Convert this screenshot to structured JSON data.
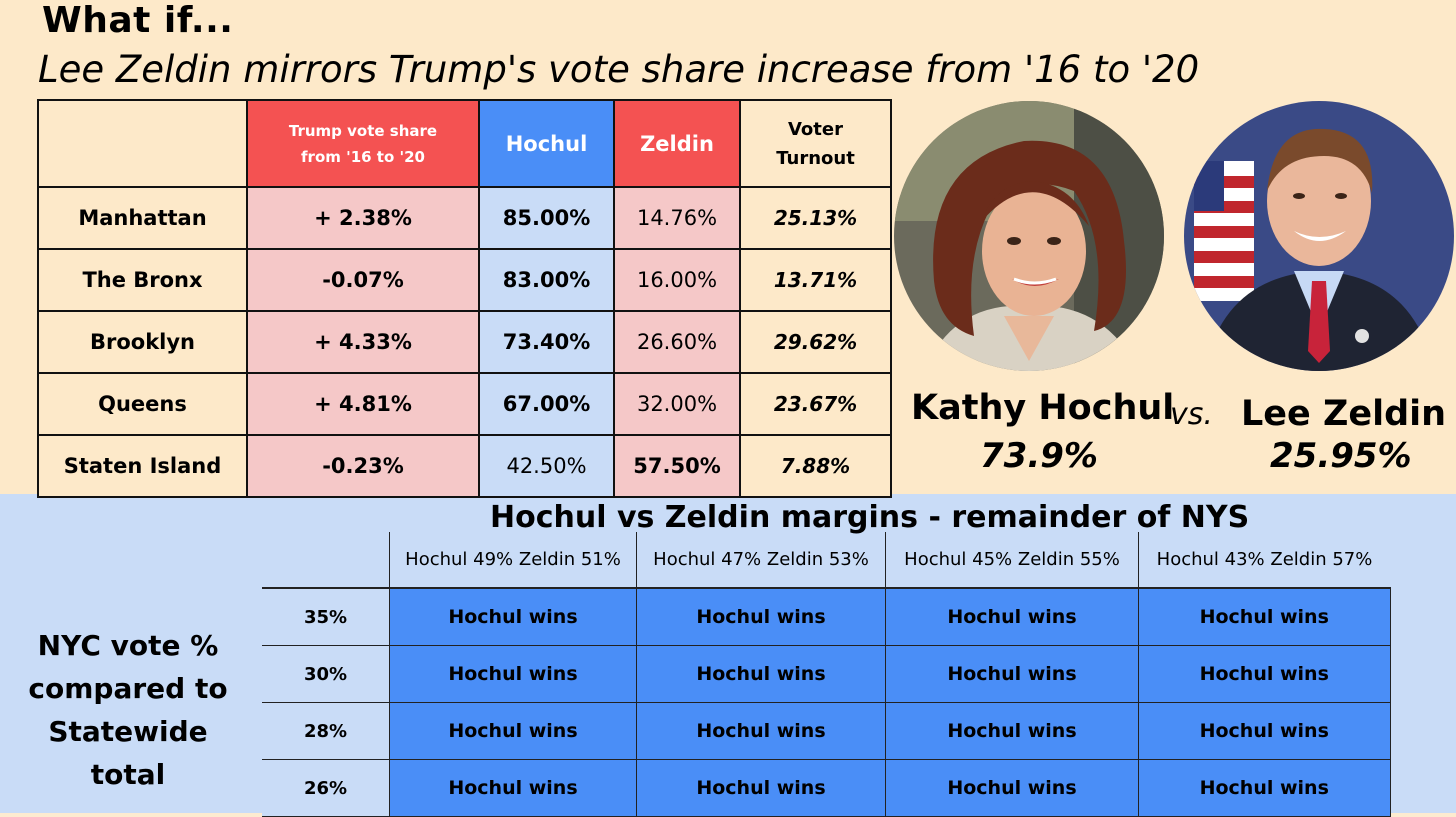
{
  "header": {
    "title": "What if...",
    "subtitle": "Lee Zeldin mirrors Trump's vote share increase from '16 to '20"
  },
  "borough_table": {
    "columns": [
      "Trump vote share from '16 to '20",
      "Hochul",
      "Zeldin",
      "Voter Turnout"
    ],
    "rows": [
      {
        "name": "Manhattan",
        "trump": "+ 2.38%",
        "hochul": "85.00%",
        "zeldin": "14.76%",
        "turnout": "25.13%"
      },
      {
        "name": "The Bronx",
        "trump": "-0.07%",
        "hochul": "83.00%",
        "zeldin": "16.00%",
        "turnout": "13.71%"
      },
      {
        "name": "Brooklyn",
        "trump": "+ 4.33%",
        "hochul": "73.40%",
        "zeldin": "26.60%",
        "turnout": "29.62%"
      },
      {
        "name": "Queens",
        "trump": "+ 4.81%",
        "hochul": "67.00%",
        "zeldin": "32.00%",
        "turnout": "23.67%"
      },
      {
        "name": "Staten Island",
        "trump": "-0.23%",
        "hochul": "42.50%",
        "zeldin": "57.50%",
        "turnout": "7.88%"
      }
    ]
  },
  "candidates": {
    "a": {
      "name": "Kathy Hochul",
      "pct": "73.9%"
    },
    "vs": "vs.",
    "b": {
      "name": "Lee Zeldin",
      "pct": "25.95%"
    }
  },
  "margins": {
    "title": "Hochul vs Zeldin margins - remainder of NYS",
    "side_label": "NYC vote % compared to Statewide total",
    "columns": [
      "Hochul 49% Zeldin 51%",
      "Hochul 47% Zeldin 53%",
      "Hochul 45% Zeldin 55%",
      "Hochul 43% Zeldin 57%"
    ],
    "rows": [
      {
        "pct": "35%",
        "cells": [
          "Hochul wins",
          "Hochul wins",
          "Hochul wins",
          "Hochul wins"
        ]
      },
      {
        "pct": "30%",
        "cells": [
          "Hochul wins",
          "Hochul wins",
          "Hochul wins",
          "Hochul wins"
        ]
      },
      {
        "pct": "28%",
        "cells": [
          "Hochul wins",
          "Hochul wins",
          "Hochul wins",
          "Hochul wins"
        ]
      },
      {
        "pct": "26%",
        "cells": [
          "Hochul wins",
          "Hochul wins",
          "Hochul wins",
          "Hochul wins"
        ]
      }
    ]
  },
  "colors": {
    "cream": "#fde9c9",
    "light_blue": "#c9dcf7",
    "blue": "#4a8ef7",
    "red": "#f45252",
    "pink": "#f5c8c8"
  }
}
